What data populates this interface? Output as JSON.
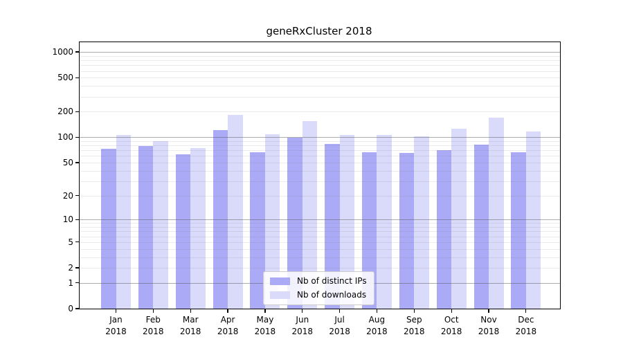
{
  "title": "geneRxCluster 2018",
  "chart_data": {
    "type": "bar",
    "title": "geneRxCluster 2018",
    "categories": [
      "Jan",
      "Feb",
      "Mar",
      "Apr",
      "May",
      "Jun",
      "Jul",
      "Aug",
      "Sep",
      "Oct",
      "Nov",
      "Dec"
    ],
    "x_year_label": "2018",
    "series": [
      {
        "name": "Nb of distinct IPs",
        "color": "#aaaaf6",
        "values": [
          73,
          78,
          63,
          122,
          67,
          99,
          83,
          67,
          65,
          70,
          81,
          67
        ]
      },
      {
        "name": "Nb of downloads",
        "color": "#dadafa",
        "values": [
          107,
          89,
          74,
          184,
          108,
          154,
          106,
          107,
          102,
          127,
          170,
          117
        ]
      }
    ],
    "yscale": "log1p",
    "ylim": [
      0,
      1300
    ],
    "yticks": [
      0,
      1,
      2,
      5,
      10,
      20,
      50,
      100,
      200,
      500,
      1000
    ],
    "grid": true,
    "grid_major_at": [
      1,
      10,
      100,
      1000
    ],
    "legend_position": "lower center",
    "axis_color": "#000000"
  }
}
